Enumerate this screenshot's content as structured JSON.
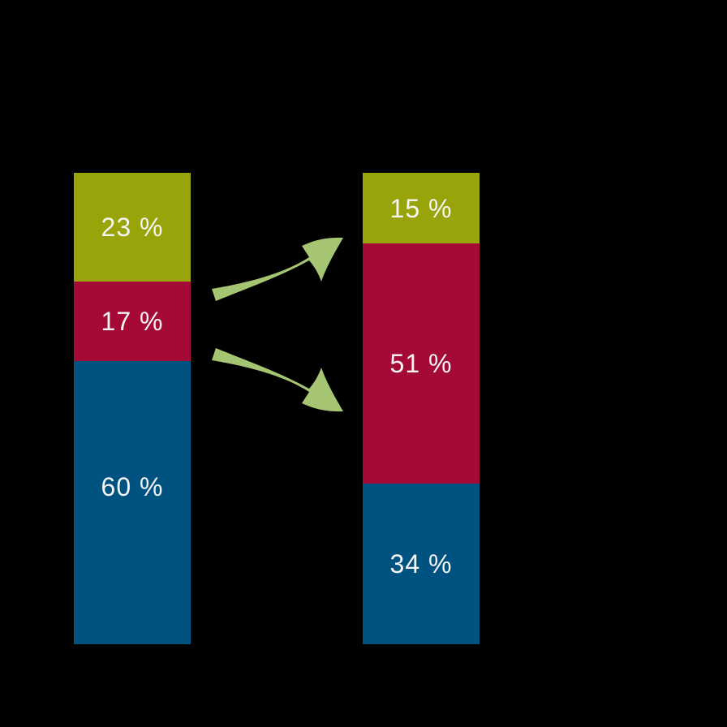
{
  "colors": {
    "background": "#000000",
    "label_text": "#f5f5f5",
    "arrow": "#a6c573",
    "series": {
      "olive": "#99a40b",
      "crimson": "#a40a35",
      "blue": "#005280"
    }
  },
  "chart_data": {
    "type": "bar",
    "subtype": "stacked-vertical",
    "unit": "%",
    "value_range": [
      0,
      100
    ],
    "grid": false,
    "legend": false,
    "axis_labels": false,
    "bars": [
      {
        "id": "left",
        "segments": [
          {
            "series": "olive",
            "value": 23,
            "label": "23 %"
          },
          {
            "series": "crimson",
            "value": 17,
            "label": "17 %"
          },
          {
            "series": "blue",
            "value": 60,
            "label": "60 %"
          }
        ]
      },
      {
        "id": "right",
        "segments": [
          {
            "series": "olive",
            "value": 15,
            "label": "15 %"
          },
          {
            "series": "crimson",
            "value": 51,
            "label": "51 %"
          },
          {
            "series": "blue",
            "value": 34,
            "label": "34 %"
          }
        ]
      }
    ],
    "annotations": [
      {
        "type": "arrow",
        "color_role": "arrow",
        "direction": "up-right",
        "from": "right edge of left bar (crimson segment)",
        "to": "left edge of right bar near olive/crimson boundary"
      },
      {
        "type": "arrow",
        "color_role": "arrow",
        "direction": "down-right",
        "from": "right edge of left bar (crimson segment)",
        "to": "left edge of right bar at crimson segment"
      }
    ]
  }
}
